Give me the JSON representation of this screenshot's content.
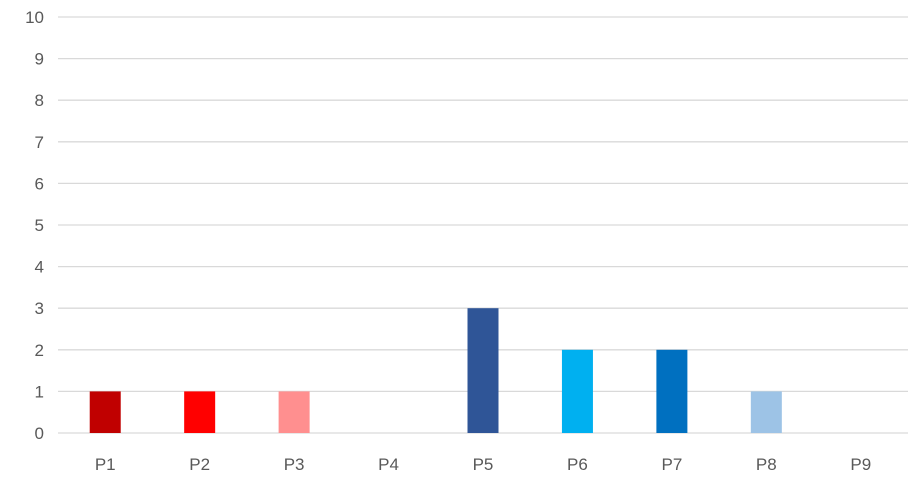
{
  "chart_data": {
    "type": "bar",
    "categories": [
      "P1",
      "P2",
      "P3",
      "P4",
      "P5",
      "P6",
      "P7",
      "P8",
      "P9"
    ],
    "values": [
      1,
      1,
      1,
      0,
      3,
      2,
      2,
      1,
      0
    ],
    "colors": [
      "#c00000",
      "#ff0000",
      "#ff8f8f",
      "#ffffff",
      "#2f5597",
      "#00b0f0",
      "#0070c0",
      "#9dc3e6",
      "#ffffff"
    ],
    "ylim": [
      0,
      10
    ],
    "yticks": [
      0,
      1,
      2,
      3,
      4,
      5,
      6,
      7,
      8,
      9,
      10
    ],
    "grid": true,
    "legend": "none",
    "title": "",
    "xlabel": "",
    "ylabel": "",
    "gridline_color": "#d9d9d9",
    "label_color": "#595959"
  }
}
